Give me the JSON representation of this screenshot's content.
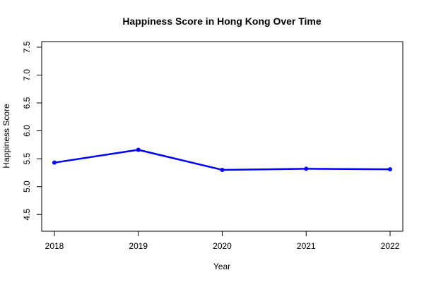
{
  "chart_data": {
    "type": "line",
    "title": "Happiness Score in Hong Kong Over Time",
    "xlabel": "Year",
    "ylabel": "Happiness Score",
    "x": [
      2018,
      2019,
      2020,
      2021,
      2022
    ],
    "x_tick_labels": [
      "2018",
      "2019",
      "2020",
      "2021",
      "2022"
    ],
    "y_ticks": [
      4.5,
      5.0,
      5.5,
      6.0,
      6.5,
      7.0,
      7.5
    ],
    "y_tick_labels": [
      "4.5",
      "5.0",
      "5.5",
      "6.0",
      "6.5",
      "7.0",
      "7.5"
    ],
    "ylim": [
      4.2,
      7.6
    ],
    "series": [
      {
        "values": [
          5.43,
          5.66,
          5.3,
          5.32,
          5.31
        ],
        "color": "#0000ff"
      }
    ],
    "grid": false,
    "legend": "none"
  }
}
